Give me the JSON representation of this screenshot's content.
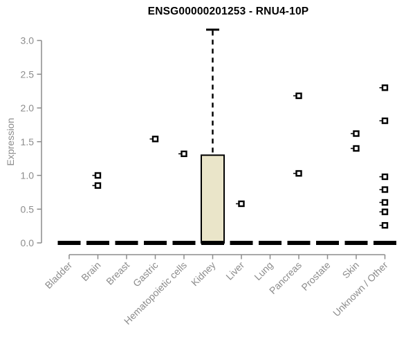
{
  "page": {
    "title": "ENSG00000201253 - RNU4-10P"
  },
  "chart_data": {
    "type": "boxplot",
    "title": "ENSG00000201253 - RNU4-10P",
    "xlabel": "",
    "ylabel": "Expression",
    "ylim": [
      0,
      3.2
    ],
    "yticks": [
      0.0,
      0.5,
      1.0,
      1.5,
      2.0,
      2.5,
      3.0
    ],
    "grid": false,
    "legend": "none",
    "categories": [
      "Bladder",
      "Brain",
      "Breast",
      "Gastric",
      "Hematopoietic cells",
      "Kidney",
      "Liver",
      "Lung",
      "Pancreas",
      "Prostate",
      "Skin",
      "Unknown / Other"
    ],
    "boxes": [
      {
        "category": "Bladder",
        "q1": 0,
        "median": 0,
        "q3": 0,
        "whisker_low": 0,
        "whisker_high": 0,
        "outliers": []
      },
      {
        "category": "Brain",
        "q1": 0,
        "median": 0,
        "q3": 0,
        "whisker_low": 0,
        "whisker_high": 0,
        "outliers": [
          1.0,
          0.85
        ]
      },
      {
        "category": "Breast",
        "q1": 0,
        "median": 0,
        "q3": 0,
        "whisker_low": 0,
        "whisker_high": 0,
        "outliers": []
      },
      {
        "category": "Gastric",
        "q1": 0,
        "median": 0,
        "q3": 0,
        "whisker_low": 0,
        "whisker_high": 0,
        "outliers": [
          1.54
        ]
      },
      {
        "category": "Hematopoietic cells",
        "q1": 0,
        "median": 0,
        "q3": 0,
        "whisker_low": 0,
        "whisker_high": 0,
        "outliers": [
          1.32
        ]
      },
      {
        "category": "Kidney",
        "q1": 0,
        "median": 0,
        "q3": 1.3,
        "whisker_low": 0,
        "whisker_high": 3.16,
        "outliers": []
      },
      {
        "category": "Liver",
        "q1": 0,
        "median": 0,
        "q3": 0,
        "whisker_low": 0,
        "whisker_high": 0,
        "outliers": [
          0.58
        ]
      },
      {
        "category": "Lung",
        "q1": 0,
        "median": 0,
        "q3": 0,
        "whisker_low": 0,
        "whisker_high": 0,
        "outliers": []
      },
      {
        "category": "Pancreas",
        "q1": 0,
        "median": 0,
        "q3": 0,
        "whisker_low": 0,
        "whisker_high": 0,
        "outliers": [
          2.18,
          1.03
        ]
      },
      {
        "category": "Prostate",
        "q1": 0,
        "median": 0,
        "q3": 0,
        "whisker_low": 0,
        "whisker_high": 0,
        "outliers": []
      },
      {
        "category": "Skin",
        "q1": 0,
        "median": 0,
        "q3": 0,
        "whisker_low": 0,
        "whisker_high": 0,
        "outliers": [
          1.62,
          1.4
        ]
      },
      {
        "category": "Unknown / Other",
        "q1": 0,
        "median": 0,
        "q3": 0,
        "whisker_low": 0,
        "whisker_high": 0,
        "outliers": [
          2.3,
          1.81,
          0.98,
          0.79,
          0.6,
          0.46,
          0.26
        ]
      }
    ],
    "colors": {
      "background": "#ffffff",
      "box_fill": "#eae5c9",
      "box_stroke": "#000000",
      "median": "#000000",
      "whisker": "#000000",
      "outlier_fill": "#ffffff",
      "outlier_stroke": "#000000",
      "axis": "#8c8c8c",
      "tick_text": "#8c8c8c",
      "title_text": "#000000"
    }
  }
}
